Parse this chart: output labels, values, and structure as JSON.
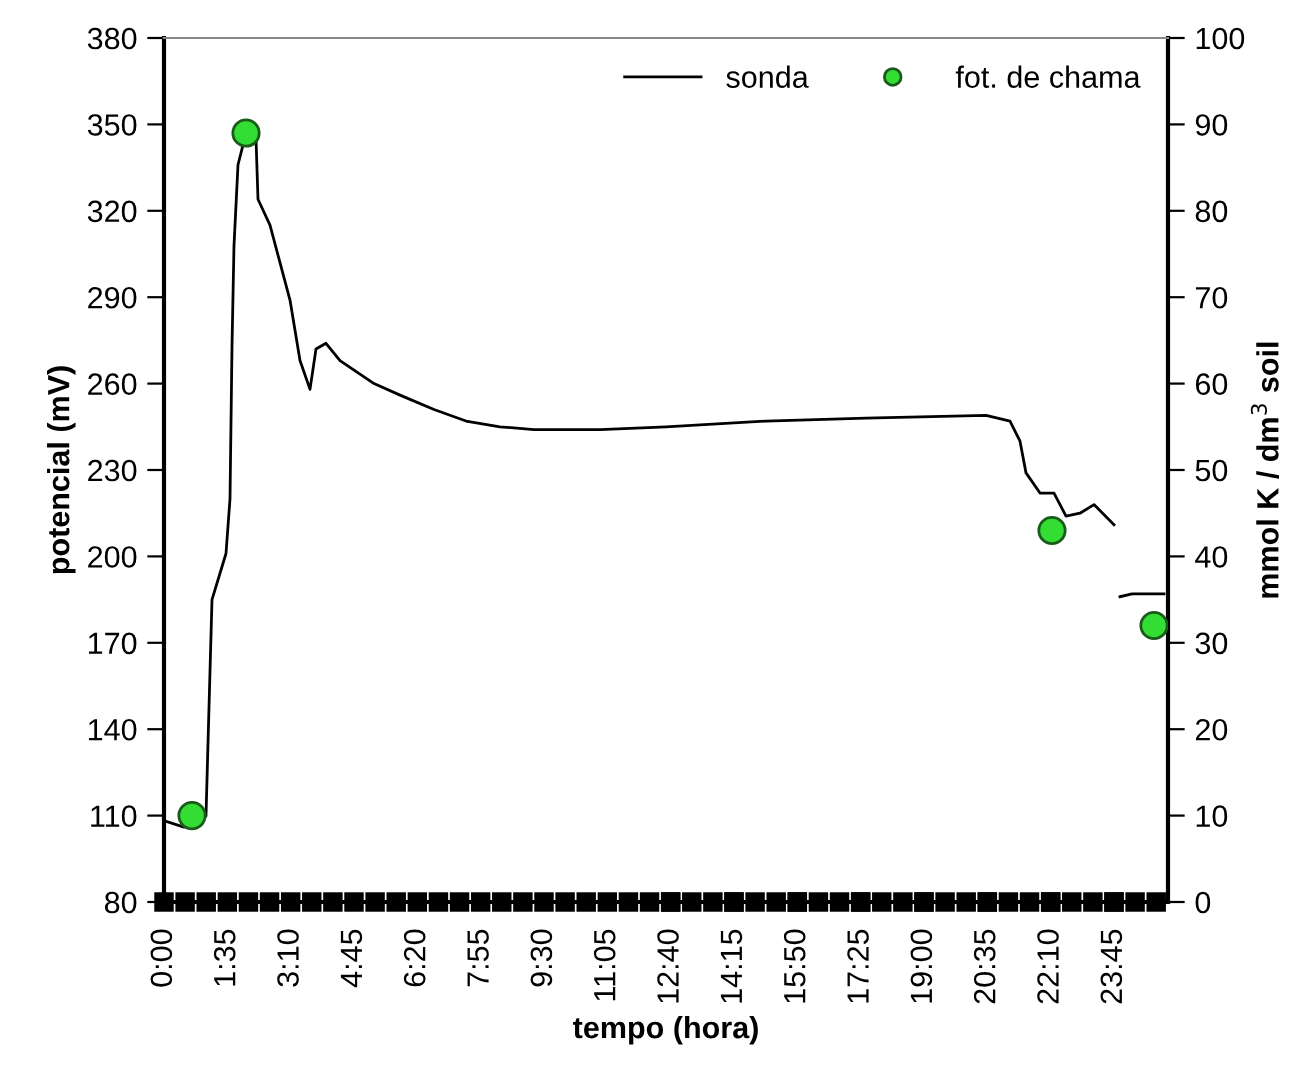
{
  "chart_data": {
    "type": "line",
    "xlabel": "tempo (hora)",
    "ylabel": "potencial (mV)",
    "y2label": "mmol K / dm$^{3}$ soil",
    "xlim": [
      0,
      25.1
    ],
    "ylim": [
      80,
      380
    ],
    "y2lim": [
      0,
      100
    ],
    "xticks": [
      {
        "value": 0,
        "label": "0:00"
      },
      {
        "value": 1.5833,
        "label": "1:35"
      },
      {
        "value": 3.1667,
        "label": "3:10"
      },
      {
        "value": 4.75,
        "label": "4:45"
      },
      {
        "value": 6.3333,
        "label": "6:20"
      },
      {
        "value": 7.9167,
        "label": "7:55"
      },
      {
        "value": 9.5,
        "label": "9:30"
      },
      {
        "value": 11.0833,
        "label": "11:05"
      },
      {
        "value": 12.6667,
        "label": "12:40"
      },
      {
        "value": 14.25,
        "label": "14:15"
      },
      {
        "value": 15.8333,
        "label": "15:50"
      },
      {
        "value": 17.4167,
        "label": "17:25"
      },
      {
        "value": 19,
        "label": "19:00"
      },
      {
        "value": 20.5833,
        "label": "20:35"
      },
      {
        "value": 22.1667,
        "label": "22:10"
      },
      {
        "value": 23.75,
        "label": "23:45"
      }
    ],
    "yticks": [
      80,
      110,
      140,
      170,
      200,
      230,
      260,
      290,
      320,
      350,
      380
    ],
    "y2ticks": [
      0,
      10,
      20,
      30,
      40,
      50,
      60,
      70,
      80,
      90,
      100
    ],
    "grid": false,
    "legend": "top right",
    "series": [
      {
        "name": "sonda",
        "color": "#000000",
        "marker": "none",
        "line_style": "solid",
        "x": [
          0.05,
          0.5,
          0.9,
          1.05,
          1.2,
          1.55,
          1.65,
          1.7,
          1.75,
          1.85,
          2.05,
          2.3,
          2.35,
          2.65,
          3.15,
          3.4,
          3.65,
          3.8,
          4.05,
          4.4,
          5.25,
          5.9,
          6.75,
          7.55,
          8.4,
          9.25,
          10.9,
          12.55,
          15.05,
          17.55,
          20.55,
          21.15,
          21.4,
          21.55,
          21.9,
          22.25,
          22.55,
          22.9,
          23.25,
          23.75,
          23.82,
          23.9,
          24.2,
          25.0
        ],
        "values": [
          108,
          106,
          107,
          110,
          185,
          201,
          220,
          273,
          308,
          336,
          347,
          345,
          324,
          315,
          289,
          268,
          258,
          272,
          274,
          268,
          260,
          256,
          251,
          247,
          245,
          244,
          244,
          245,
          247,
          248,
          249,
          247,
          240,
          229,
          222,
          222,
          214,
          215,
          218,
          211,
          null,
          186,
          187,
          187
        ]
      },
      {
        "name": "fot. de chama",
        "type": "scatter",
        "axis": "y2",
        "color": "#33dd33",
        "marker": "circle",
        "x": [
          0.7,
          2.05,
          22.2,
          24.75
        ],
        "values": [
          10,
          89,
          43,
          32
        ]
      }
    ]
  }
}
